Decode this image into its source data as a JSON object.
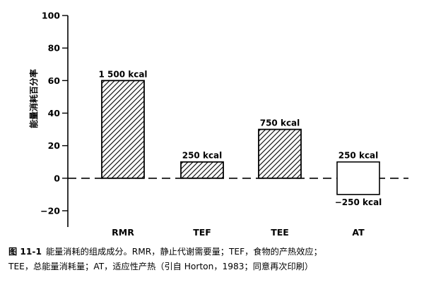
{
  "chart_data": {
    "type": "bar",
    "categories": [
      "RMR",
      "TEF",
      "TEE",
      "AT"
    ],
    "values": [
      60,
      10,
      30,
      -10
    ],
    "bar_labels": [
      "1 500 kcal",
      "250 kcal",
      "750 kcal",
      "250 kcal"
    ],
    "negative_label": "−250 kcal",
    "ylabel": "能量消耗百分率",
    "ylim": [
      -30,
      100
    ],
    "yticks": [
      -20,
      0,
      20,
      40,
      60,
      80,
      100
    ],
    "zero_line": "dashed",
    "bar_fill": [
      "hatched",
      "hatched",
      "hatched",
      "hatched",
      "empty"
    ]
  },
  "caption": {
    "number": "图 11-1",
    "line1": "能量消耗的组成成分。RMR，静止代谢需要量；TEF，食物的产热效应；",
    "line2": "TEE，总能量消耗量；AT，适应性产热（引自 Horton，1983；同意再次印刷）"
  }
}
